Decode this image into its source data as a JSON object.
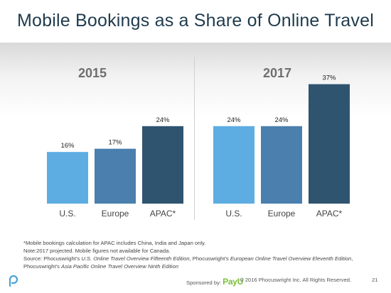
{
  "title": "Mobile Bookings as a Share of Online Travel",
  "chart_data": [
    {
      "type": "bar",
      "title": "2015",
      "categories": [
        "U.S.",
        "Europe",
        "APAC*"
      ],
      "values": [
        16,
        17,
        24
      ],
      "data_labels": [
        "16%",
        "17%",
        "24%"
      ],
      "colors": [
        "#5dade2",
        "#4a7fae",
        "#2e5470"
      ],
      "ylim": [
        0,
        40
      ],
      "grid": false
    },
    {
      "type": "bar",
      "title": "2017",
      "categories": [
        "U.S.",
        "Europe",
        "APAC*"
      ],
      "values": [
        24,
        24,
        37
      ],
      "data_labels": [
        "24%",
        "24%",
        "37%"
      ],
      "colors": [
        "#5dade2",
        "#4a7fae",
        "#2e5470"
      ],
      "ylim": [
        0,
        40
      ],
      "grid": false
    }
  ],
  "footnotes": {
    "line1": "*Mobile bookings calculation for APAC includes China, India and Japan only.",
    "line2": "Note:2017 projected. Mobile figures not available for Canada.",
    "line3_a": "Source: Phocuswright’s ",
    "line3_b": "U.S. Online Travel Overview Fifteenth Edition",
    "line3_c": ", Phocuswright’s ",
    "line3_d": "European Online Travel Overview Eleventh Edition",
    "line3_e": ",",
    "line4_a": "Phocuswright’s ",
    "line4_b": "Asia Pacific Online Travel Overview Ninth Edition"
  },
  "footer": {
    "sponsored_by": "Sponsored by:",
    "sponsor_brand_a": "Pay",
    "sponsor_brand_b": "U",
    "copyright": "© 2016 Phocuswright Inc. All Rights Reserved.",
    "page_number": "21"
  },
  "colors": {
    "title": "#1f3b4d",
    "us": "#5dade2",
    "europe": "#4a7fae",
    "apac": "#2e5470"
  }
}
